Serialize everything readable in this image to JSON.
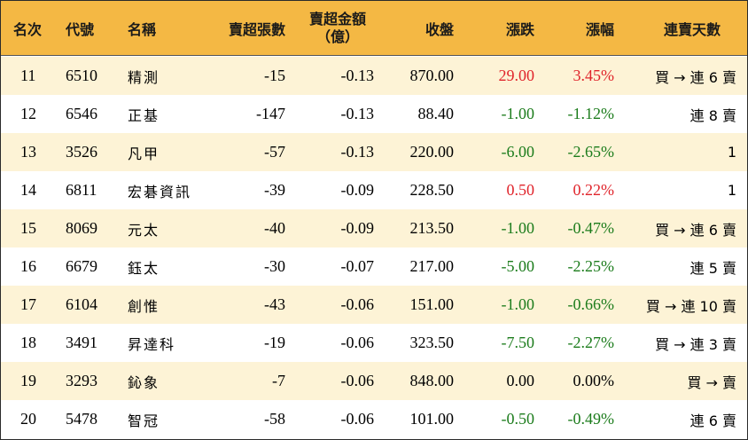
{
  "headers": {
    "rank": "名次",
    "code": "代號",
    "name": "名稱",
    "net_sell_lots": "賣超張數",
    "net_sell_amount_line1": "賣超金額",
    "net_sell_amount_line2": "（億）",
    "close": "收盤",
    "change": "漲跌",
    "pct_change": "漲幅",
    "consecutive_sell_days": "連賣天數"
  },
  "colors": {
    "header_bg": "#f4b844",
    "odd_row_bg": "#fdf3d6",
    "even_row_bg": "#ffffff",
    "up": "#e0242b",
    "down": "#1c7c1c"
  },
  "rows": [
    {
      "rank": "11",
      "code": "6510",
      "name": "精測",
      "lots": "-15",
      "amount": "-0.13",
      "close": "870.00",
      "change": "29.00",
      "pct": "3.45%",
      "streak": "買 → 連 6 賣",
      "direction": "up"
    },
    {
      "rank": "12",
      "code": "6546",
      "name": "正基",
      "lots": "-147",
      "amount": "-0.13",
      "close": "88.40",
      "change": "-1.00",
      "pct": "-1.12%",
      "streak": "連 8 賣",
      "direction": "down"
    },
    {
      "rank": "13",
      "code": "3526",
      "name": "凡甲",
      "lots": "-57",
      "amount": "-0.13",
      "close": "220.00",
      "change": "-6.00",
      "pct": "-2.65%",
      "streak": "1",
      "direction": "down"
    },
    {
      "rank": "14",
      "code": "6811",
      "name": "宏碁資訊",
      "lots": "-39",
      "amount": "-0.09",
      "close": "228.50",
      "change": "0.50",
      "pct": "0.22%",
      "streak": "1",
      "direction": "up"
    },
    {
      "rank": "15",
      "code": "8069",
      "name": "元太",
      "lots": "-40",
      "amount": "-0.09",
      "close": "213.50",
      "change": "-1.00",
      "pct": "-0.47%",
      "streak": "買 → 連 6 賣",
      "direction": "down"
    },
    {
      "rank": "16",
      "code": "6679",
      "name": "鈺太",
      "lots": "-30",
      "amount": "-0.07",
      "close": "217.00",
      "change": "-5.00",
      "pct": "-2.25%",
      "streak": "連 5 賣",
      "direction": "down"
    },
    {
      "rank": "17",
      "code": "6104",
      "name": "創惟",
      "lots": "-43",
      "amount": "-0.06",
      "close": "151.00",
      "change": "-1.00",
      "pct": "-0.66%",
      "streak": "買 → 連 10 賣",
      "direction": "down"
    },
    {
      "rank": "18",
      "code": "3491",
      "name": "昇達科",
      "lots": "-19",
      "amount": "-0.06",
      "close": "323.50",
      "change": "-7.50",
      "pct": "-2.27%",
      "streak": "買 → 連 3 賣",
      "direction": "down"
    },
    {
      "rank": "19",
      "code": "3293",
      "name": "鈊象",
      "lots": "-7",
      "amount": "-0.06",
      "close": "848.00",
      "change": "0.00",
      "pct": "0.00%",
      "streak": "買 → 賣",
      "direction": "flat"
    },
    {
      "rank": "20",
      "code": "5478",
      "name": "智冠",
      "lots": "-58",
      "amount": "-0.06",
      "close": "101.00",
      "change": "-0.50",
      "pct": "-0.49%",
      "streak": "連 6 賣",
      "direction": "down"
    }
  ]
}
